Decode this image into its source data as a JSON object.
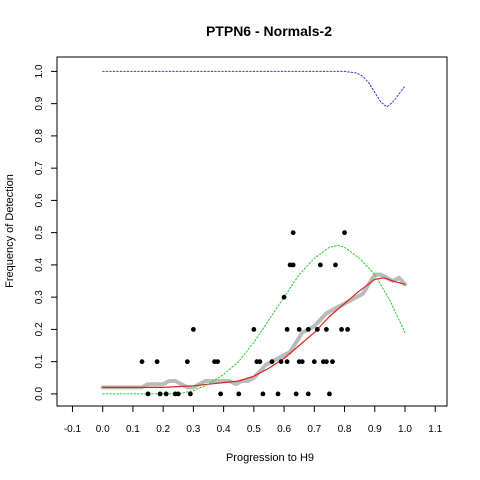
{
  "chart_data": {
    "type": "scatter",
    "title": "PTPN6 - Normals-2",
    "xlabel": "Progression to H9",
    "ylabel": "Frequency of Detection",
    "xlim": [
      -0.1,
      1.1
    ],
    "ylim": [
      0.0,
      1.0
    ],
    "grid": false,
    "x_ticks": [
      "-0.1",
      "0.0",
      "0.1",
      "0.2",
      "0.3",
      "0.4",
      "0.5",
      "0.6",
      "0.7",
      "0.8",
      "0.9",
      "1.0",
      "1.1"
    ],
    "y_ticks": [
      "0.0",
      "0.1",
      "0.2",
      "0.3",
      "0.4",
      "0.5",
      "0.6",
      "0.7",
      "0.8",
      "0.9",
      "1.0"
    ],
    "colors": {
      "points": "#000000",
      "gray_smooth": "#bbbbbb",
      "red_fit": "#e02020",
      "green_dotted": "#22cc22",
      "blue_dotted": "#3333ee"
    },
    "black_points": [
      [
        0.13,
        0.1
      ],
      [
        0.15,
        0.0
      ],
      [
        0.18,
        0.1
      ],
      [
        0.19,
        0.0
      ],
      [
        0.21,
        0.0
      ],
      [
        0.24,
        0.0
      ],
      [
        0.25,
        0.0
      ],
      [
        0.28,
        0.1
      ],
      [
        0.29,
        0.0
      ],
      [
        0.3,
        0.2
      ],
      [
        0.37,
        0.1
      ],
      [
        0.38,
        0.1
      ],
      [
        0.39,
        0.0
      ],
      [
        0.45,
        0.0
      ],
      [
        0.5,
        0.2
      ],
      [
        0.51,
        0.1
      ],
      [
        0.52,
        0.1
      ],
      [
        0.53,
        0.0
      ],
      [
        0.56,
        0.1
      ],
      [
        0.58,
        0.0
      ],
      [
        0.59,
        0.1
      ],
      [
        0.6,
        0.3
      ],
      [
        0.61,
        0.1
      ],
      [
        0.61,
        0.2
      ],
      [
        0.62,
        0.4
      ],
      [
        0.63,
        0.4
      ],
      [
        0.63,
        0.5
      ],
      [
        0.64,
        0.0
      ],
      [
        0.65,
        0.1
      ],
      [
        0.65,
        0.2
      ],
      [
        0.66,
        0.1
      ],
      [
        0.68,
        0.2
      ],
      [
        0.68,
        0.0
      ],
      [
        0.7,
        0.1
      ],
      [
        0.71,
        0.2
      ],
      [
        0.72,
        0.4
      ],
      [
        0.73,
        0.1
      ],
      [
        0.74,
        0.2
      ],
      [
        0.74,
        0.1
      ],
      [
        0.75,
        0.0
      ],
      [
        0.76,
        0.1
      ],
      [
        0.77,
        0.4
      ],
      [
        0.79,
        0.2
      ],
      [
        0.8,
        0.5
      ],
      [
        0.81,
        0.2
      ]
    ],
    "series": [
      {
        "style": "gray-smooth",
        "x": [
          0.0,
          0.05,
          0.1,
          0.13,
          0.15,
          0.18,
          0.2,
          0.22,
          0.24,
          0.26,
          0.28,
          0.3,
          0.32,
          0.34,
          0.36,
          0.38,
          0.4,
          0.42,
          0.44,
          0.46,
          0.48,
          0.5,
          0.52,
          0.54,
          0.56,
          0.58,
          0.6,
          0.62,
          0.64,
          0.66,
          0.68,
          0.7,
          0.72,
          0.74,
          0.76,
          0.78,
          0.8,
          0.82,
          0.84,
          0.86,
          0.88,
          0.9,
          0.92,
          0.94,
          0.96,
          0.98,
          1.0
        ],
        "y": [
          0.02,
          0.02,
          0.02,
          0.02,
          0.03,
          0.03,
          0.03,
          0.04,
          0.04,
          0.03,
          0.02,
          0.02,
          0.03,
          0.04,
          0.04,
          0.04,
          0.04,
          0.04,
          0.03,
          0.04,
          0.04,
          0.05,
          0.07,
          0.09,
          0.1,
          0.11,
          0.12,
          0.13,
          0.16,
          0.19,
          0.2,
          0.21,
          0.23,
          0.25,
          0.26,
          0.27,
          0.28,
          0.29,
          0.3,
          0.31,
          0.34,
          0.37,
          0.37,
          0.36,
          0.35,
          0.36,
          0.34
        ]
      },
      {
        "style": "red-fit",
        "x": [
          0.0,
          0.1,
          0.2,
          0.3,
          0.35,
          0.4,
          0.45,
          0.5,
          0.55,
          0.6,
          0.65,
          0.7,
          0.75,
          0.8,
          0.85,
          0.9,
          0.93,
          0.96,
          1.0
        ],
        "y": [
          0.02,
          0.02,
          0.02,
          0.025,
          0.03,
          0.035,
          0.04,
          0.055,
          0.08,
          0.11,
          0.15,
          0.19,
          0.24,
          0.28,
          0.32,
          0.355,
          0.36,
          0.35,
          0.34
        ]
      },
      {
        "style": "green-dotted",
        "x": [
          0.0,
          0.1,
          0.2,
          0.25,
          0.3,
          0.35,
          0.4,
          0.45,
          0.5,
          0.55,
          0.6,
          0.65,
          0.7,
          0.75,
          0.78,
          0.8,
          0.85,
          0.9,
          0.95,
          1.0
        ],
        "y": [
          0.0,
          0.0,
          0.0,
          0.0,
          0.01,
          0.03,
          0.06,
          0.1,
          0.16,
          0.23,
          0.3,
          0.37,
          0.42,
          0.455,
          0.46,
          0.455,
          0.42,
          0.37,
          0.29,
          0.19
        ]
      },
      {
        "style": "blue-dotted",
        "x": [
          0.0,
          0.2,
          0.4,
          0.6,
          0.8,
          0.84,
          0.86,
          0.88,
          0.9,
          0.92,
          0.94,
          0.96,
          0.98,
          1.0
        ],
        "y": [
          1.0,
          1.0,
          1.0,
          1.0,
          1.0,
          0.995,
          0.985,
          0.965,
          0.935,
          0.905,
          0.89,
          0.905,
          0.93,
          0.955
        ]
      }
    ]
  }
}
